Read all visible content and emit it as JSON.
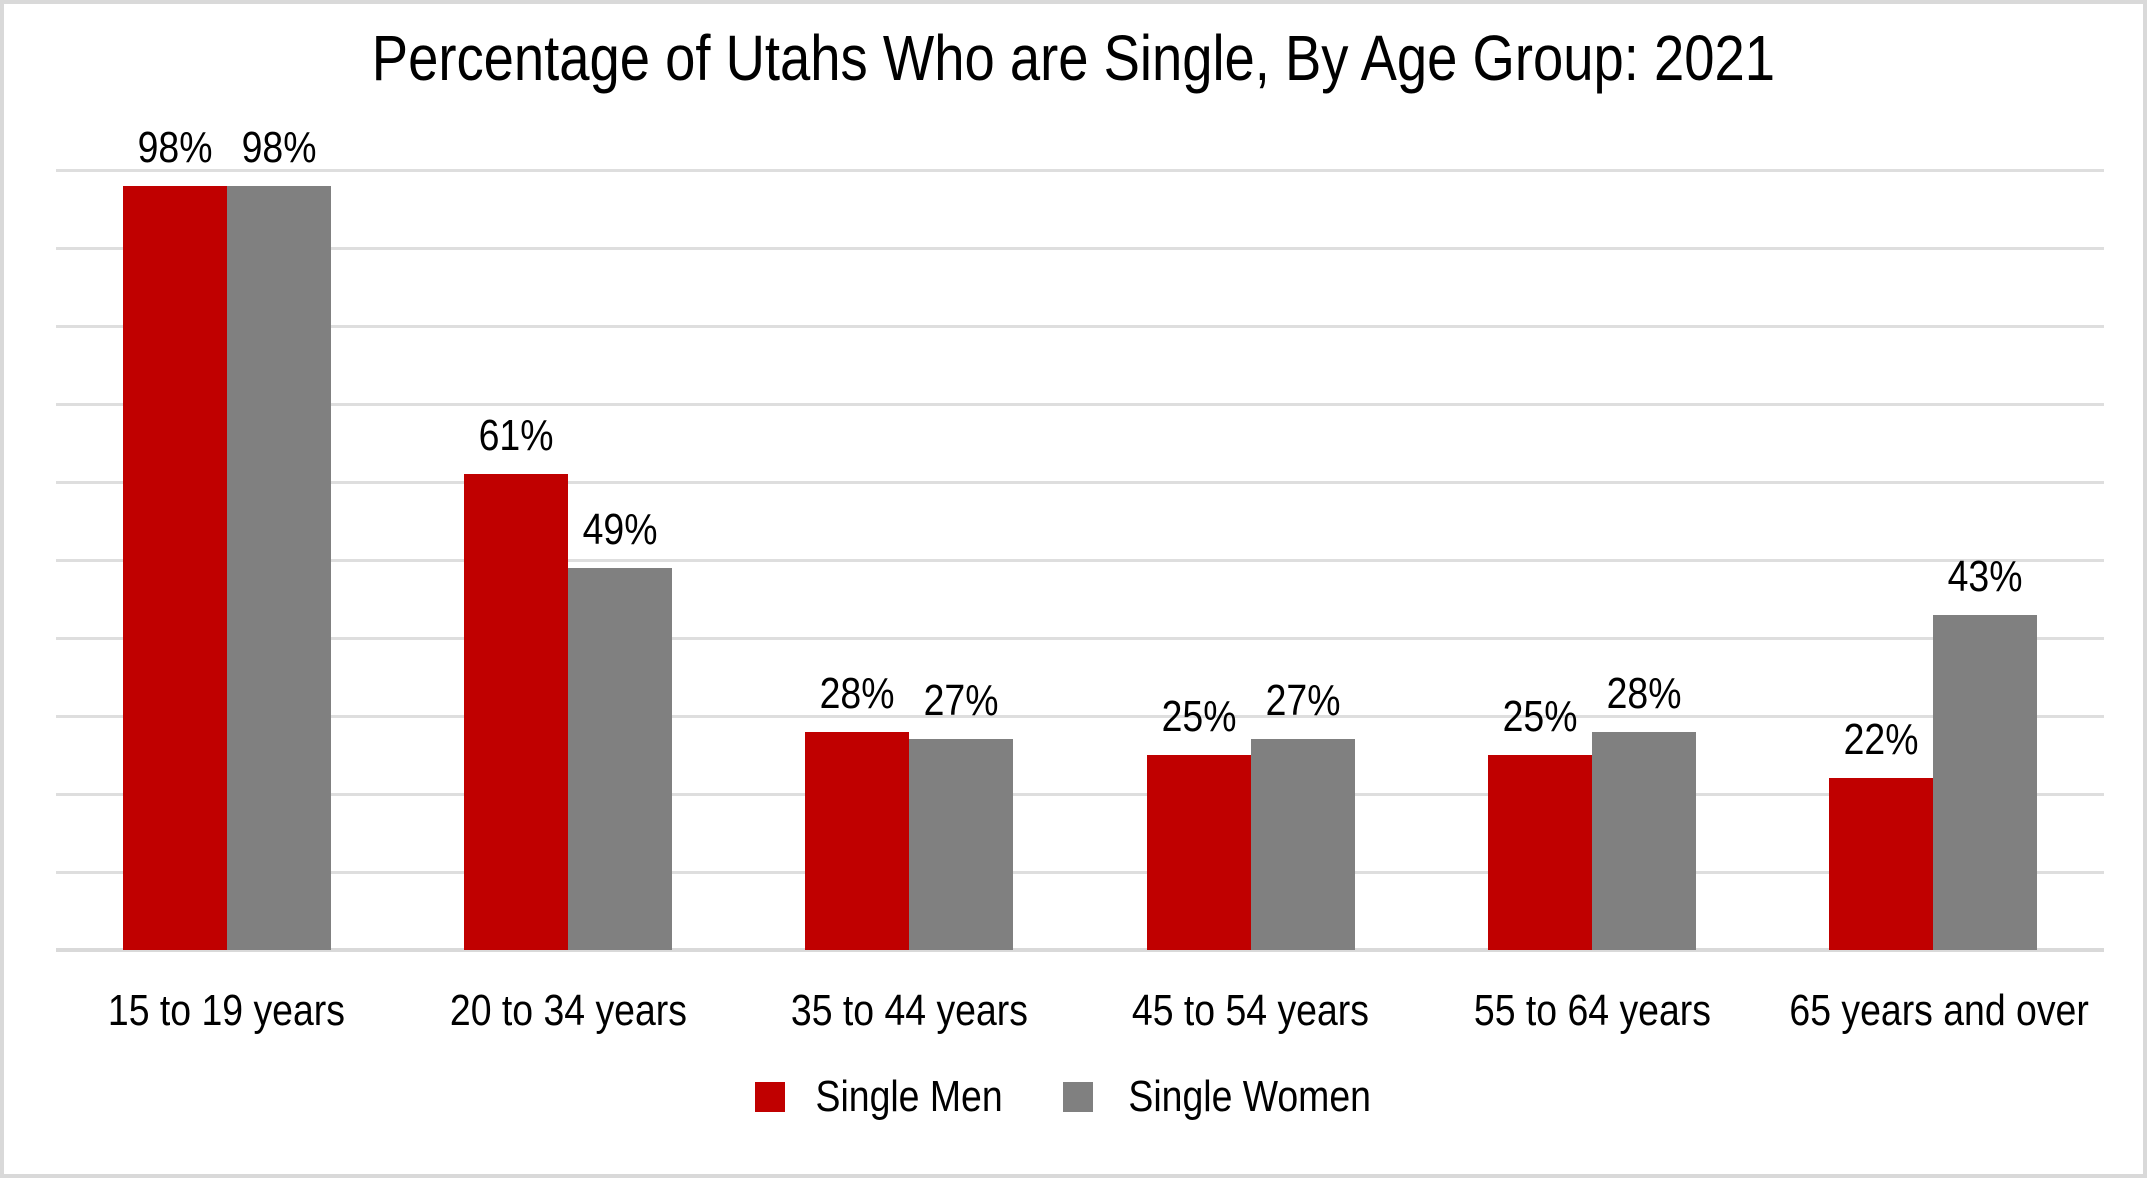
{
  "chart_data": {
    "type": "bar",
    "title": "Percentage of Utahs Who are Single, By Age Group: 2021",
    "categories": [
      "15 to 19 years",
      "20 to 34 years",
      "35 to 44 years",
      "45 to 54 years",
      "55 to 64 years",
      "65 years and over"
    ],
    "series": [
      {
        "name": "Single Men",
        "color": "#C00000",
        "values": [
          98,
          61,
          28,
          25,
          25,
          22
        ],
        "labels": [
          "98%",
          "61%",
          "28%",
          "25%",
          "25%",
          "22%"
        ]
      },
      {
        "name": "Single Women",
        "color": "#808080",
        "values": [
          98,
          49,
          27,
          27,
          28,
          43
        ],
        "labels": [
          "98%",
          "49%",
          "27%",
          "27%",
          "28%",
          "43%"
        ]
      }
    ],
    "xlabel": "",
    "ylabel": "",
    "ylim": [
      0,
      100
    ],
    "gridline_interval": 10,
    "grid": true,
    "y_axis_labels_visible": false,
    "legend_position": "bottom",
    "colors": {
      "gridline": "#DEDEDE",
      "axis_line": "#D9D9D9",
      "text": "#000000",
      "background": "#FFFFFF",
      "border": "#D9D9D9"
    }
  }
}
